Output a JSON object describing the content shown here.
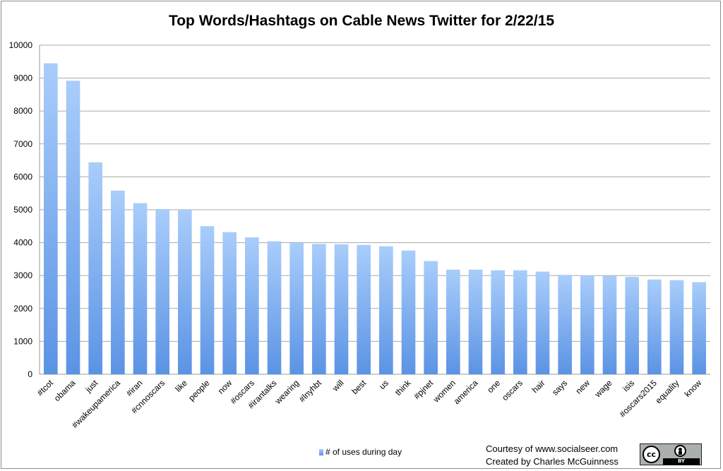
{
  "chart_data": {
    "type": "bar",
    "title": "Top Words/Hashtags on Cable News Twitter for 2/22/15",
    "xlabel": "",
    "ylabel": "",
    "ylim": [
      0,
      10000
    ],
    "yticks": [
      0,
      1000,
      2000,
      3000,
      4000,
      5000,
      6000,
      7000,
      8000,
      9000,
      10000
    ],
    "grid": true,
    "legend_position": "bottom",
    "categories": [
      "#tcot",
      "obama",
      "just",
      "#wakeupamerica",
      "#iran",
      "#cnnoscars",
      "like",
      "people",
      "now",
      "#oscars",
      "#irantalks",
      "wearing",
      "#lnyhbt",
      "will",
      "best",
      "us",
      "think",
      "#pjnet",
      "women",
      "america",
      "one",
      "oscars",
      "hair",
      "says",
      "new",
      "wage",
      "isis",
      "#oscars2015",
      "equality",
      "know"
    ],
    "series": [
      {
        "name": "# of uses during day",
        "color": "#6aa0ee",
        "values": [
          9450,
          8920,
          6440,
          5580,
          5200,
          5020,
          5000,
          4500,
          4320,
          4160,
          4040,
          3990,
          3960,
          3950,
          3930,
          3890,
          3760,
          3440,
          3180,
          3180,
          3160,
          3160,
          3120,
          3020,
          3000,
          2990,
          2960,
          2880,
          2860,
          2800
        ]
      }
    ]
  },
  "footer": {
    "credit_line1": "Courtesy of www.socialseer.com",
    "credit_line2": "Created by Charles McGuinness",
    "license_icon": "cc-by-icon"
  }
}
